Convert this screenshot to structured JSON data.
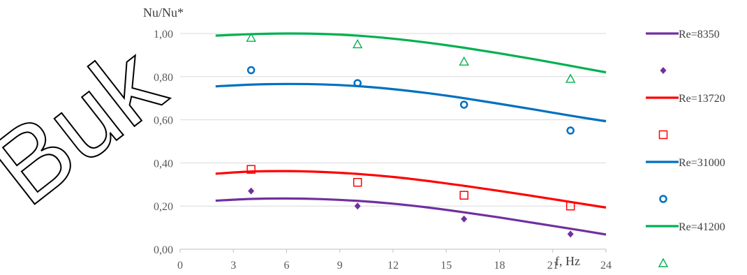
{
  "chart_data": {
    "type": "line",
    "xlabel": "f, Hz",
    "ylabel": "Nu/Nu*",
    "xlim": [
      0,
      24
    ],
    "ylim": [
      0,
      1.0
    ],
    "x_ticks": [
      "0",
      "3",
      "6",
      "9",
      "12",
      "15",
      "18",
      "21",
      "24"
    ],
    "y_ticks": [
      "0,00",
      "0,20",
      "0,40",
      "0,60",
      "0,80",
      "1,00"
    ],
    "grid": "horizontal",
    "legend_position": "right",
    "series": [
      {
        "name": "Re=8350",
        "color": "#7030A0",
        "line": {
          "x": [
            2,
            4,
            6,
            8,
            10,
            12,
            14,
            16,
            18,
            20,
            22,
            24
          ],
          "y": [
            0.225,
            0.233,
            0.235,
            0.232,
            0.224,
            0.211,
            0.193,
            0.171,
            0.147,
            0.121,
            0.095,
            0.068
          ]
        },
        "points": {
          "marker": "diamond",
          "x": [
            4,
            10,
            16,
            22
          ],
          "y": [
            0.27,
            0.2,
            0.14,
            0.07
          ]
        }
      },
      {
        "name": "Re=13720",
        "color": "#FF0000",
        "line": {
          "x": [
            2,
            4,
            6,
            8,
            10,
            12,
            14,
            16,
            18,
            20,
            22,
            24
          ],
          "y": [
            0.35,
            0.36,
            0.362,
            0.358,
            0.349,
            0.335,
            0.316,
            0.294,
            0.27,
            0.245,
            0.219,
            0.193
          ]
        },
        "points": {
          "marker": "square",
          "x": [
            4,
            10,
            16,
            22
          ],
          "y": [
            0.37,
            0.31,
            0.25,
            0.2
          ]
        }
      },
      {
        "name": "Re=31000",
        "color": "#0070C0",
        "line": {
          "x": [
            2,
            4,
            6,
            8,
            10,
            12,
            14,
            16,
            18,
            20,
            22,
            24
          ],
          "y": [
            0.755,
            0.763,
            0.766,
            0.764,
            0.756,
            0.742,
            0.723,
            0.7,
            0.674,
            0.647,
            0.619,
            0.593
          ]
        },
        "points": {
          "marker": "circle",
          "x": [
            4,
            10,
            16,
            22
          ],
          "y": [
            0.83,
            0.77,
            0.67,
            0.55
          ]
        }
      },
      {
        "name": "Re=41200",
        "color": "#00B050",
        "line": {
          "x": [
            2,
            4,
            6,
            8,
            10,
            12,
            14,
            16,
            18,
            20,
            22,
            24
          ],
          "y": [
            0.99,
            0.997,
            1.0,
            0.998,
            0.99,
            0.976,
            0.957,
            0.934,
            0.908,
            0.88,
            0.85,
            0.82
          ]
        },
        "points": {
          "marker": "triangle",
          "x": [
            4,
            10,
            16,
            22
          ],
          "y": [
            0.98,
            0.95,
            0.87,
            0.79
          ]
        }
      }
    ]
  },
  "watermark": {
    "text": "Buk",
    "color": "#000000"
  }
}
